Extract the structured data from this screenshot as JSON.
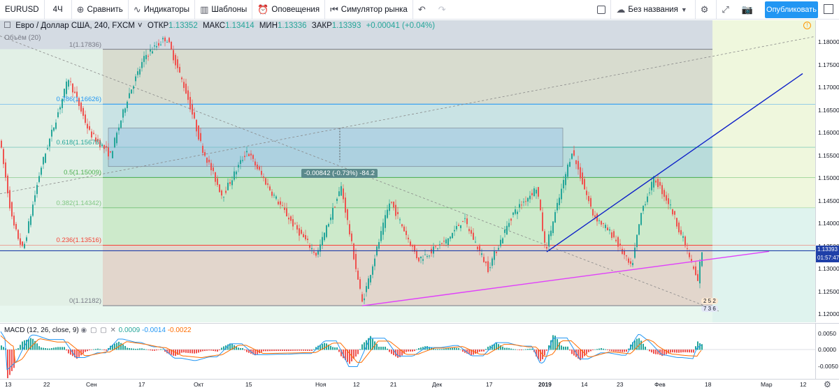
{
  "toolbar": {
    "symbol": "EURUSD",
    "interval": "4Ч",
    "compare": "Сравнить",
    "indicators": "Индикаторы",
    "templates": "Шаблоны",
    "alerts": "Оповещения",
    "replay": "Симулятор рынка",
    "layout_name": "Без названия",
    "publish": "Опубликовать"
  },
  "legend": {
    "title": "Евро / Доллар США, 240, FXCM",
    "open_label": "ОТКР",
    "open": "1.13352",
    "high_label": "МАКС",
    "high": "1.13414",
    "low_label": "МИН",
    "low": "1.13336",
    "close_label": "ЗАКР",
    "close": "1.13393",
    "change": "+0.00041 (+0.04%)",
    "volume": "Объём (20)"
  },
  "fib_levels": [
    {
      "ratio": 1,
      "label": "1(1.17836)",
      "price": 1.17836,
      "color": "#787b86"
    },
    {
      "ratio": 0.786,
      "label": "0.786(1.16626)",
      "price": 1.16626,
      "color": "#2196f3"
    },
    {
      "ratio": 0.618,
      "label": "0.618(1.15676)",
      "price": 1.15676,
      "color": "#26a69a"
    },
    {
      "ratio": 0.5,
      "label": "0.5(1.15009)",
      "price": 1.15009,
      "color": "#4caf50"
    },
    {
      "ratio": 0.382,
      "label": "0.382(1.14342)",
      "price": 1.14342,
      "color": "#81c784"
    },
    {
      "ratio": 0.236,
      "label": "0.236(1.13516)",
      "price": 1.13516,
      "color": "#f44336"
    },
    {
      "ratio": 0,
      "label": "0(1.12182)",
      "price": 1.12182,
      "color": "#787b86"
    }
  ],
  "measure_tooltip": "-0.00842 (-0.73%) -84.2",
  "price_axis": {
    "ticks": [
      "1.18000",
      "1.17500",
      "1.17000",
      "1.16500",
      "1.16000",
      "1.15500",
      "1.15000",
      "1.14500",
      "1.14000",
      "1.13500",
      "1.13000",
      "1.12500",
      "1.12000"
    ],
    "last_price": "1.13393",
    "countdown": "01:57:47"
  },
  "macd": {
    "legend": "MACD (12, 26, close, 9)",
    "v1": "0.0009",
    "v2": "-0.0014",
    "v3": "-0.0022",
    "ticks": [
      "0.0050",
      "0.0000",
      "-0.0050"
    ]
  },
  "time_axis": [
    "13",
    "22",
    "Сен",
    "17",
    "Окт",
    "15",
    "Ноя",
    "12",
    "21",
    "Дек",
    "17",
    "2019",
    "14",
    "23",
    "Фев",
    "18",
    "Мар",
    "12"
  ],
  "events": {
    "row1": "2 5 2",
    "row2": "7 3 6"
  },
  "colors": {
    "up": "#26a69a",
    "down": "#ef5350",
    "trend_blue": "#0d1fc8",
    "trend_magenta": "#e040fb",
    "hline": "#1e3fa8",
    "macd_line": "#2196f3",
    "signal_line": "#ff6d00"
  }
}
